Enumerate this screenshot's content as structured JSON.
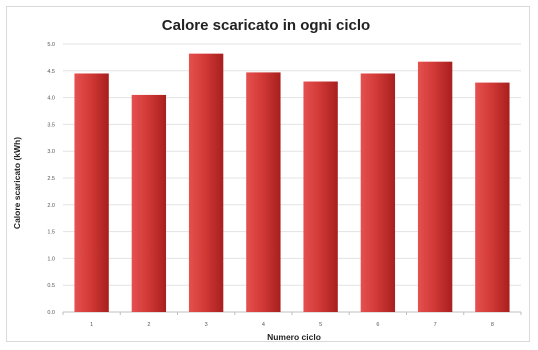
{
  "chart_data": {
    "type": "bar",
    "title": "Calore scaricato in ogni ciclo",
    "xlabel": "Numero ciclo",
    "ylabel": "Calore scaricato (kWh)",
    "categories": [
      "1",
      "2",
      "3",
      "4",
      "5",
      "6",
      "7",
      "8"
    ],
    "values": [
      4.45,
      4.05,
      4.82,
      4.47,
      4.3,
      4.45,
      4.67,
      4.28
    ],
    "ylim": [
      0,
      5.0
    ],
    "yticks": [
      "0.0",
      "0.5",
      "1.0",
      "1.5",
      "2.0",
      "2.5",
      "3.0",
      "3.5",
      "4.0",
      "4.5",
      "5.0"
    ],
    "grid": true,
    "legend": "none",
    "colors": {
      "bar_light": "#e4514f",
      "bar_mid": "#d23a37",
      "bar_dark": "#a81f1e"
    }
  }
}
